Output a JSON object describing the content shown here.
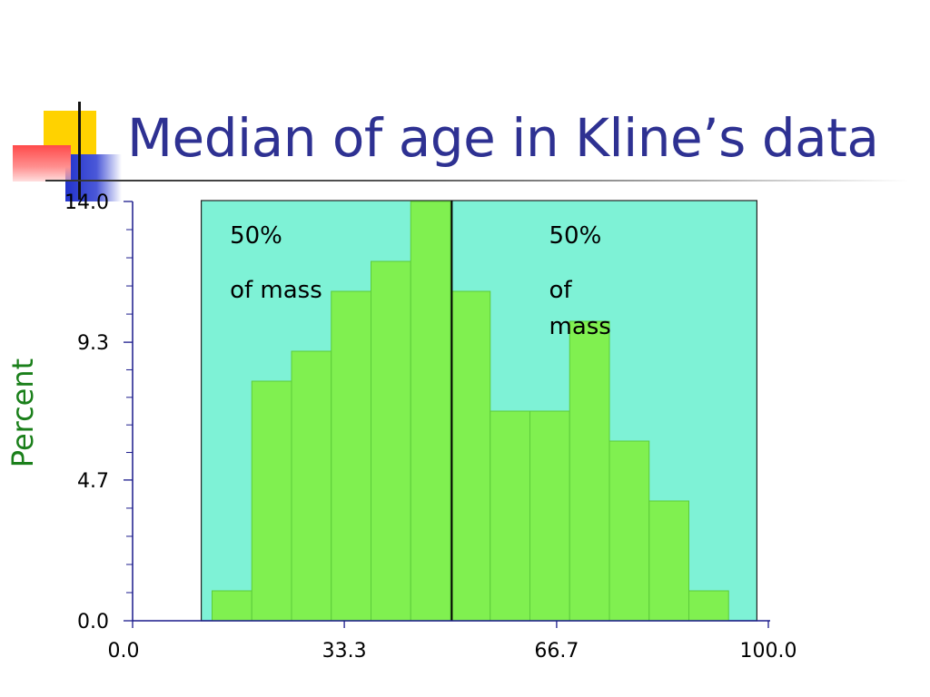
{
  "title": "Median of age in Kline’s data",
  "colors": {
    "title": "#2e3192",
    "plot_background": "#7ef2d6",
    "bar_fill": "#80f050",
    "bar_stroke": "#5ccc3a",
    "axis": "#1a1a8c",
    "ylabel": "#1a7f1a",
    "median_line": "#000000"
  },
  "chart_data": {
    "type": "bar",
    "title": "Median of age in Kline’s data",
    "xlabel": "",
    "ylabel": "Percent",
    "xlim": [
      0,
      100
    ],
    "ylim": [
      0,
      14
    ],
    "x_ticks": [
      "0.0",
      "33.3",
      "66.7",
      "100.0"
    ],
    "y_ticks": [
      "0.0",
      "4.7",
      "9.3",
      "14.0"
    ],
    "bin_width": 6.25,
    "bins": [
      {
        "x0": 12.5,
        "x1": 18.75,
        "value": 1.0
      },
      {
        "x0": 18.75,
        "x1": 25.0,
        "value": 8.0
      },
      {
        "x0": 25.0,
        "x1": 31.25,
        "value": 9.0
      },
      {
        "x0": 31.25,
        "x1": 37.5,
        "value": 11.0
      },
      {
        "x0": 37.5,
        "x1": 43.75,
        "value": 12.0
      },
      {
        "x0": 43.75,
        "x1": 50.0,
        "value": 14.0
      },
      {
        "x0": 50.0,
        "x1": 56.25,
        "value": 11.0
      },
      {
        "x0": 56.25,
        "x1": 62.5,
        "value": 7.0
      },
      {
        "x0": 62.5,
        "x1": 68.75,
        "value": 7.0
      },
      {
        "x0": 68.75,
        "x1": 75.0,
        "value": 10.0
      },
      {
        "x0": 75.0,
        "x1": 81.25,
        "value": 6.0
      },
      {
        "x0": 81.25,
        "x1": 87.5,
        "value": 4.0
      },
      {
        "x0": 87.5,
        "x1": 93.75,
        "value": 1.0
      }
    ],
    "background_range": [
      10.8,
      98.2
    ],
    "median": 50.2,
    "annotations": [
      {
        "lines": [
          "50%",
          "of mass"
        ],
        "x": 15.3,
        "y": 12.6
      },
      {
        "lines": [
          "50%",
          "of",
          "mass"
        ],
        "x": 65.5,
        "y": 12.6
      }
    ],
    "grid": false,
    "legend": "none"
  }
}
